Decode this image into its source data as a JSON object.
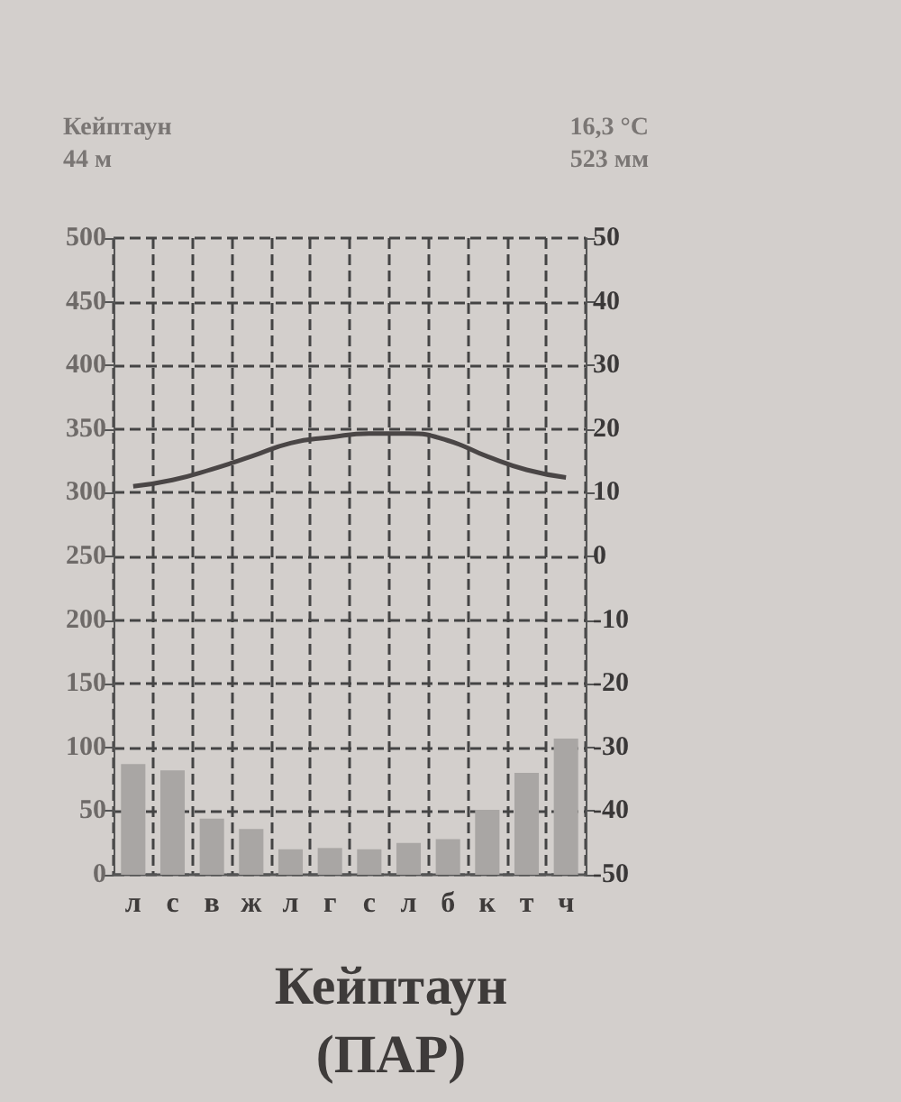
{
  "chart_data": {
    "type": "bar",
    "title": "Кейптаун\n(ПАР)",
    "annotations": [
      "Кейптаун",
      "44 м",
      "16,3 °C",
      "523 мм"
    ],
    "categories": [
      "л",
      "с",
      "в",
      "ж",
      "л",
      "г",
      "с",
      "л",
      "б",
      "к",
      "т",
      "ч"
    ],
    "series": [
      {
        "color": "#a9a6a4",
        "values": [
          87,
          82,
          44,
          36,
          20,
          21,
          20,
          25,
          28,
          51,
          80,
          107
        ]
      },
      {
        "type": "line",
        "axis": "y2",
        "color": "#4a4646",
        "values": [
          11,
          12,
          13.7,
          15.7,
          17.8,
          18.7,
          19.3,
          19.3,
          18.2,
          15.7,
          13.6,
          12.4
        ]
      }
    ],
    "ylim": [
      0,
      500
    ],
    "yticks": [
      0,
      50,
      100,
      150,
      200,
      250,
      300,
      350,
      400,
      450,
      500
    ],
    "y2lim": [
      -50,
      50
    ],
    "y2ticks": [
      -50,
      -40,
      -30,
      -20,
      -10,
      0,
      10,
      20,
      30,
      40,
      50
    ],
    "grid": true,
    "marker": "none",
    "line_style": "solid"
  }
}
